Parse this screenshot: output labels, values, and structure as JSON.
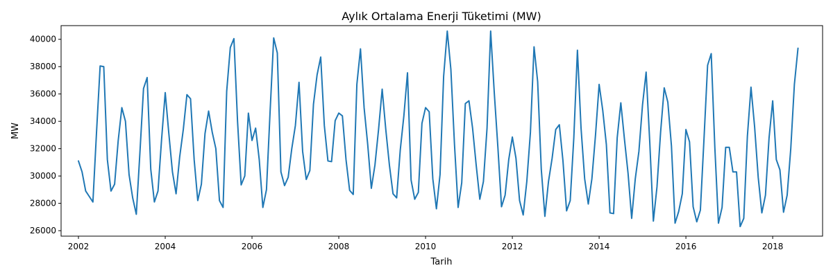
{
  "chart_data": {
    "type": "line",
    "title": "Aylık Ortalama Enerji Tüketimi (MW)",
    "xlabel": "Tarih",
    "ylabel": "MW",
    "xlim": [
      2001.6,
      2019.15
    ],
    "ylim": [
      25600,
      41000
    ],
    "grid": false,
    "legend": "none",
    "line_color": "#1f77b4",
    "x_ticks": [
      2002,
      2004,
      2006,
      2008,
      2010,
      2012,
      2014,
      2016,
      2018
    ],
    "x_tick_labels": [
      "2002",
      "2004",
      "2006",
      "2008",
      "2010",
      "2012",
      "2014",
      "2016",
      "2018"
    ],
    "y_ticks": [
      26000,
      28000,
      30000,
      32000,
      34000,
      36000,
      38000,
      40000
    ],
    "y_tick_labels": [
      "26000",
      "28000",
      "30000",
      "32000",
      "34000",
      "36000",
      "38000",
      "40000"
    ],
    "series": [
      {
        "start": "2002-01",
        "frequency": "monthly",
        "values": [
          31100,
          30300,
          28900,
          28500,
          28100,
          33200,
          38050,
          38000,
          31200,
          28900,
          29400,
          32600,
          35000,
          34000,
          30100,
          28400,
          27200,
          31700,
          36400,
          37200,
          30500,
          28100,
          28900,
          32700,
          36100,
          33100,
          30300,
          28700,
          31400,
          33400,
          35950,
          35650,
          31200,
          28200,
          29400,
          33100,
          34750,
          33200,
          32000,
          28200,
          27700,
          36200,
          39400,
          40050,
          34000,
          29350,
          30000,
          34600,
          32600,
          33500,
          31200,
          27700,
          29000,
          34700,
          40100,
          39000,
          30300,
          29300,
          29900,
          32000,
          33700,
          36850,
          31800,
          29750,
          30400,
          35250,
          37400,
          38700,
          33700,
          31100,
          31050,
          34050,
          34600,
          34400,
          31200,
          28950,
          28650,
          36700,
          39300,
          35000,
          32300,
          29100,
          30800,
          33400,
          36350,
          33400,
          30800,
          28700,
          28400,
          31900,
          34400,
          37550,
          29700,
          28300,
          28800,
          33850,
          35000,
          34700,
          29800,
          27600,
          30100,
          37300,
          40600,
          37800,
          32300,
          27700,
          29500,
          35300,
          35500,
          33500,
          30800,
          28300,
          29600,
          33500,
          40600,
          36100,
          32100,
          27750,
          28600,
          31200,
          32850,
          31300,
          28200,
          27150,
          29600,
          33200,
          39450,
          36900,
          30500,
          27050,
          29600,
          31300,
          33400,
          33750,
          31100,
          27450,
          28200,
          32800,
          39200,
          33500,
          29800,
          27950,
          29800,
          33000,
          36700,
          34800,
          32300,
          27300,
          27250,
          32800,
          35350,
          32700,
          30200,
          26900,
          29800,
          31800,
          35200,
          37600,
          32500,
          26700,
          29200,
          33200,
          36450,
          35400,
          32200,
          26550,
          27400,
          28700,
          33400,
          32500,
          27750,
          26650,
          27500,
          32700,
          38100,
          38950,
          32100,
          26550,
          27700,
          32100,
          32100,
          30300,
          30300,
          26300,
          26900,
          32900,
          36500,
          33600,
          29900,
          27300,
          28600,
          32800,
          35500,
          31200,
          30450,
          27350,
          28600,
          32000,
          36700,
          39350
        ]
      }
    ]
  }
}
